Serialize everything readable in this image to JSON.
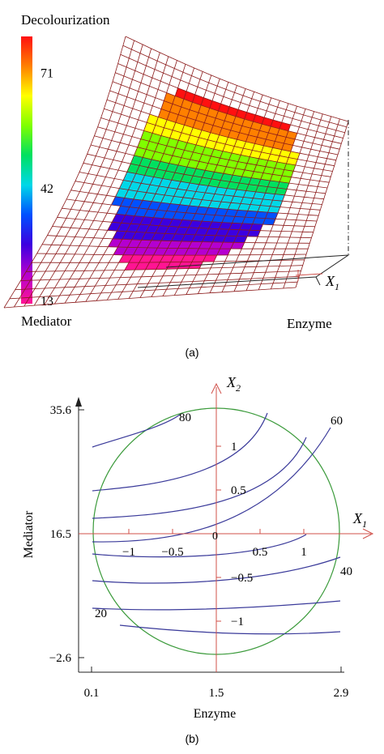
{
  "chart_data": [
    {
      "panel": "(a)",
      "type": "surface",
      "colorbar": {
        "title": "Decolourization",
        "ticks": [
          13,
          42,
          71
        ],
        "range": [
          13,
          80
        ],
        "colors": [
          "#ff1493",
          "#b400d0",
          "#3c00e0",
          "#0050ff",
          "#00d8e8",
          "#00e060",
          "#80ff00",
          "#ffff00",
          "#ff8000",
          "#ff1010"
        ]
      },
      "axes": {
        "left": "Mediator",
        "bottom": "Enzyme",
        "x1_label": "X",
        "x1_sub": "1"
      },
      "mesh_color": "#8b1a1a"
    },
    {
      "panel": "(b)",
      "type": "contour",
      "xlabel": "Enzyme",
      "ylabel": "Mediator",
      "xticks": [
        0.1,
        1.5,
        2.9
      ],
      "yticks": [
        -2.6,
        16.5,
        35.6
      ],
      "xlim": [
        0.1,
        2.9
      ],
      "ylim": [
        -2.6,
        35.6
      ],
      "coded_axes": {
        "x1_label": "X",
        "x1_sub": "1",
        "x2_label": "X",
        "x2_sub": "2",
        "origin": "0",
        "x_ticks": [
          "−1",
          "−0.5",
          "0.5",
          "1"
        ],
        "y_ticks": [
          "1",
          "0.5",
          "−0.5",
          "−1"
        ]
      },
      "contour_labels": [
        "80",
        "60",
        "40",
        "20"
      ],
      "colors": {
        "contour": "#3a3a9a",
        "circle": "#3a9a3a",
        "coded": "#d0504a"
      }
    }
  ]
}
